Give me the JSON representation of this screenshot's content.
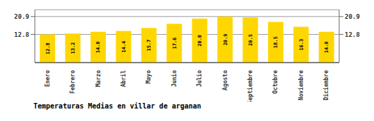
{
  "chart_data": {
    "type": "bar",
    "title": "Temperaturas Medias en villar de arganan",
    "categories": [
      "Enero",
      "Febrero",
      "Marzo",
      "Abril",
      "Mayo",
      "Junio",
      "Julio",
      "Agosto",
      "Septiembre",
      "Octubre",
      "Noviembre",
      "Diciembre"
    ],
    "values": [
      12.8,
      13.2,
      14.0,
      14.4,
      15.7,
      17.6,
      20.0,
      20.9,
      20.5,
      18.5,
      16.3,
      14.0
    ],
    "value_labels": [
      "12.8",
      "13.2",
      "14.0",
      "14.4",
      "15.7",
      "17.6",
      "20.0",
      "20.9",
      "20.5",
      "18.5",
      "16.3",
      "14.0"
    ],
    "color": "#FFD700",
    "ylim": [
      0,
      24.0
    ],
    "yticks": [
      12.8,
      20.9
    ],
    "y2lim": [
      0,
      24.0
    ],
    "y2ticks": [
      12.8,
      20.9
    ],
    "grid": true,
    "data_labels": true
  }
}
